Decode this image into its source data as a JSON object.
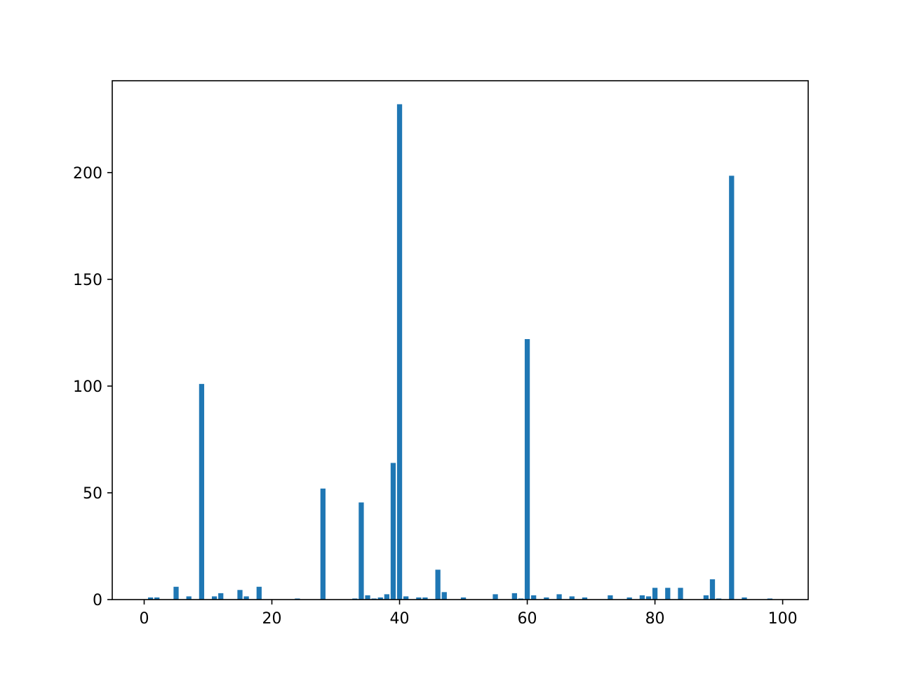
{
  "chart_data": {
    "type": "bar",
    "title": "",
    "xlabel": "",
    "ylabel": "",
    "bar_color": "#1f77b4",
    "bar_width": 0.8,
    "xlim": [
      -5,
      104
    ],
    "ylim": [
      0,
      243
    ],
    "x_ticks": [
      0,
      20,
      40,
      60,
      80,
      100
    ],
    "y_ticks": [
      0,
      50,
      100,
      150,
      200
    ],
    "grid": false,
    "legend": "none",
    "x": [
      1,
      2,
      5,
      7,
      9,
      11,
      12,
      15,
      16,
      18,
      24,
      28,
      33,
      34,
      35,
      36,
      37,
      38,
      39,
      40,
      41,
      43,
      44,
      46,
      47,
      50,
      55,
      58,
      59,
      60,
      61,
      63,
      65,
      67,
      69,
      73,
      76,
      78,
      79,
      80,
      82,
      84,
      88,
      89,
      90,
      92,
      94,
      98
    ],
    "values": [
      1,
      1,
      6,
      1.5,
      101,
      1.5,
      3,
      4.5,
      1.5,
      6,
      0.5,
      52,
      0.5,
      45.5,
      2,
      0.5,
      1,
      2.5,
      64,
      232,
      1.5,
      1,
      1,
      14,
      3.5,
      1,
      2.5,
      3,
      0.5,
      122,
      2,
      1,
      2.5,
      1.5,
      1,
      2,
      1,
      2,
      1.5,
      5.5,
      5.5,
      5.5,
      2,
      9.5,
      0.5,
      198.5,
      1,
      0.5
    ]
  }
}
